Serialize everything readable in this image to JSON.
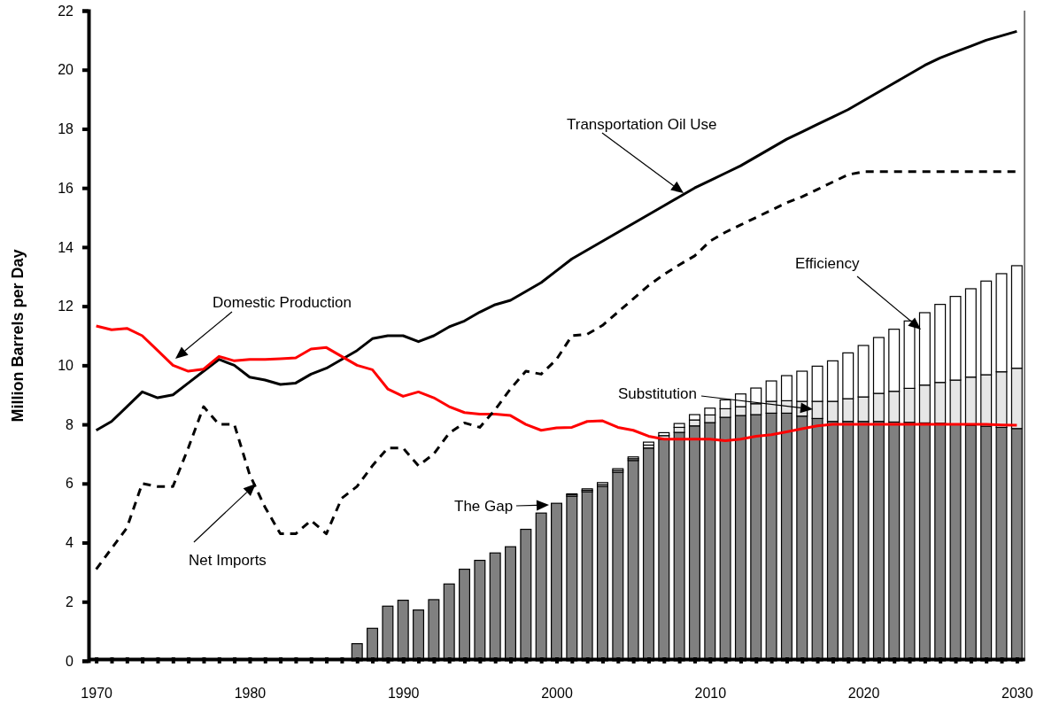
{
  "chart_data": {
    "type": "bar",
    "ylabel": "Million Barrels per Day",
    "stacked": true,
    "x": [
      1970,
      1971,
      1972,
      1973,
      1974,
      1975,
      1976,
      1977,
      1978,
      1979,
      1980,
      1981,
      1982,
      1983,
      1984,
      1985,
      1986,
      1987,
      1988,
      1989,
      1990,
      1991,
      1992,
      1993,
      1994,
      1995,
      1996,
      1997,
      1998,
      1999,
      2000,
      2001,
      2002,
      2003,
      2004,
      2005,
      2006,
      2007,
      2008,
      2009,
      2010,
      2011,
      2012,
      2013,
      2014,
      2015,
      2016,
      2017,
      2018,
      2019,
      2020,
      2021,
      2022,
      2023,
      2024,
      2025,
      2026,
      2027,
      2028,
      2029,
      2030
    ],
    "xlim": [
      1969.5,
      2030.5
    ],
    "xticks": [
      1970,
      {
        "value": 1971,
        "label": null
      },
      {
        "value": 1972,
        "label": null
      },
      {
        "value": 1973,
        "label": null
      },
      {
        "value": 1974,
        "label": null
      },
      {
        "value": 1975,
        "label": null
      },
      {
        "value": 1976,
        "label": null
      },
      {
        "value": 1977,
        "label": null
      },
      {
        "value": 1978,
        "label": null
      },
      {
        "value": 1979,
        "label": null
      },
      1980,
      {
        "value": 1981,
        "label": null
      },
      {
        "value": 1982,
        "label": null
      },
      {
        "value": 1983,
        "label": null
      },
      {
        "value": 1984,
        "label": null
      },
      {
        "value": 1985,
        "label": null
      },
      {
        "value": 1986,
        "label": null
      },
      {
        "value": 1987,
        "label": null
      },
      {
        "value": 1988,
        "label": null
      },
      {
        "value": 1989,
        "label": null
      },
      1990,
      {
        "value": 1991,
        "label": null
      },
      {
        "value": 1992,
        "label": null
      },
      {
        "value": 1993,
        "label": null
      },
      {
        "value": 1994,
        "label": null
      },
      {
        "value": 1995,
        "label": null
      },
      {
        "value": 1996,
        "label": null
      },
      {
        "value": 1997,
        "label": null
      },
      {
        "value": 1998,
        "label": null
      },
      {
        "value": 1999,
        "label": null
      },
      2000,
      {
        "value": 2001,
        "label": null
      },
      {
        "value": 2002,
        "label": null
      },
      {
        "value": 2003,
        "label": null
      },
      {
        "value": 2004,
        "label": null
      },
      {
        "value": 2005,
        "label": null
      },
      {
        "value": 2006,
        "label": null
      },
      {
        "value": 2007,
        "label": null
      },
      {
        "value": 2008,
        "label": null
      },
      {
        "value": 2009,
        "label": null
      },
      2010,
      {
        "value": 2011,
        "label": null
      },
      {
        "value": 2012,
        "label": null
      },
      {
        "value": 2013,
        "label": null
      },
      {
        "value": 2014,
        "label": null
      },
      {
        "value": 2015,
        "label": null
      },
      {
        "value": 2016,
        "label": null
      },
      {
        "value": 2017,
        "label": null
      },
      {
        "value": 2018,
        "label": null
      },
      {
        "value": 2019,
        "label": null
      },
      2020,
      {
        "value": 2021,
        "label": null
      },
      {
        "value": 2022,
        "label": null
      },
      {
        "value": 2023,
        "label": null
      },
      {
        "value": 2024,
        "label": null
      },
      {
        "value": 2025,
        "label": null
      },
      {
        "value": 2026,
        "label": null
      },
      {
        "value": 2027,
        "label": null
      },
      {
        "value": 2028,
        "label": null
      },
      {
        "value": 2029,
        "label": null
      },
      2030
    ],
    "ylim": [
      0,
      22
    ],
    "yticks": [
      0,
      2,
      4,
      6,
      8,
      10,
      12,
      14,
      16,
      18,
      20,
      22
    ],
    "series": [
      {
        "name": "The Gap",
        "color": "#808080",
        "x": [
          1987,
          1988,
          1989,
          1990,
          1991,
          1992,
          1993,
          1994,
          1995,
          1996,
          1997,
          1998,
          1999,
          2000,
          2001,
          2002,
          2003,
          2004,
          2005,
          2006,
          2007,
          2008,
          2009,
          2010,
          2011,
          2012,
          2013,
          2014,
          2015,
          2016,
          2017,
          2018,
          2019,
          2020,
          2021,
          2022,
          2023,
          2024,
          2025,
          2026,
          2027,
          2028,
          2029,
          2030
        ],
        "values": [
          0.58,
          1.1,
          1.85,
          2.05,
          1.72,
          2.07,
          2.6,
          3.1,
          3.4,
          3.65,
          3.86,
          4.45,
          5.0,
          5.33,
          5.57,
          5.72,
          5.9,
          6.38,
          6.78,
          7.2,
          7.5,
          7.73,
          7.95,
          8.06,
          8.24,
          8.3,
          8.33,
          8.38,
          8.38,
          8.28,
          8.2,
          8.1,
          8.1,
          8.1,
          8.1,
          8.08,
          8.07,
          8.05,
          8.04,
          8.0,
          7.97,
          7.94,
          7.9,
          7.86
        ]
      },
      {
        "name": "Substitution",
        "color": "#e6e6e6",
        "x": [
          1987,
          1988,
          1989,
          1990,
          1991,
          1992,
          1993,
          1994,
          1995,
          1996,
          1997,
          1998,
          1999,
          2000,
          2001,
          2002,
          2003,
          2004,
          2005,
          2006,
          2007,
          2008,
          2009,
          2010,
          2011,
          2012,
          2013,
          2014,
          2015,
          2016,
          2017,
          2018,
          2019,
          2020,
          2021,
          2022,
          2023,
          2024,
          2025,
          2026,
          2027,
          2028,
          2029,
          2030
        ],
        "values": [
          0,
          0,
          0,
          0,
          0,
          0,
          0,
          0,
          0,
          0,
          0,
          0,
          0,
          0,
          0.05,
          0.05,
          0.06,
          0.06,
          0.06,
          0.1,
          0.12,
          0.17,
          0.2,
          0.26,
          0.29,
          0.3,
          0.37,
          0.4,
          0.42,
          0.5,
          0.58,
          0.68,
          0.77,
          0.83,
          0.95,
          1.04,
          1.15,
          1.28,
          1.38,
          1.5,
          1.63,
          1.74,
          1.88,
          2.04
        ]
      },
      {
        "name": "Efficiency",
        "color": "#ffffff",
        "x": [
          1987,
          1988,
          1989,
          1990,
          1991,
          1992,
          1993,
          1994,
          1995,
          1996,
          1997,
          1998,
          1999,
          2000,
          2001,
          2002,
          2003,
          2004,
          2005,
          2006,
          2007,
          2008,
          2009,
          2010,
          2011,
          2012,
          2013,
          2014,
          2015,
          2016,
          2017,
          2018,
          2019,
          2020,
          2021,
          2022,
          2023,
          2024,
          2025,
          2026,
          2027,
          2028,
          2029,
          2030
        ],
        "values": [
          0,
          0,
          0,
          0,
          0,
          0,
          0,
          0,
          0,
          0,
          0,
          0,
          0,
          0,
          0.03,
          0.05,
          0.07,
          0.06,
          0.06,
          0.1,
          0.1,
          0.13,
          0.18,
          0.23,
          0.3,
          0.43,
          0.53,
          0.69,
          0.85,
          1.02,
          1.19,
          1.37,
          1.55,
          1.74,
          1.89,
          2.1,
          2.28,
          2.45,
          2.64,
          2.83,
          2.99,
          3.17,
          3.32,
          3.47
        ]
      },
      {
        "name": "Transportation Oil Use",
        "type": "line",
        "color": "#000000",
        "line_style": "solid",
        "values": [
          7.8,
          8.1,
          8.6,
          9.1,
          8.9,
          9.0,
          9.4,
          9.8,
          10.2,
          10.0,
          9.6,
          9.5,
          9.35,
          9.4,
          9.7,
          9.9,
          10.2,
          10.5,
          10.9,
          11.0,
          11.0,
          10.8,
          11.0,
          11.3,
          11.5,
          11.8,
          12.05,
          12.2,
          12.5,
          12.8,
          13.2,
          13.6,
          13.9,
          14.2,
          14.5,
          14.8,
          15.1,
          15.4,
          15.7,
          16.0,
          16.25,
          16.5,
          16.75,
          17.05,
          17.35,
          17.65,
          17.9,
          18.15,
          18.4,
          18.65,
          18.95,
          19.25,
          19.55,
          19.85,
          20.15,
          20.4,
          20.6,
          20.8,
          21.0,
          21.15,
          21.3
        ]
      },
      {
        "name": "Domestic Production",
        "type": "line",
        "color": "#ff0000",
        "line_style": "solid",
        "values": [
          11.33,
          11.2,
          11.25,
          11.0,
          10.5,
          10.0,
          9.8,
          9.87,
          10.3,
          10.15,
          10.2,
          10.2,
          10.22,
          10.25,
          10.55,
          10.6,
          10.3,
          10.0,
          9.85,
          9.2,
          8.95,
          9.1,
          8.9,
          8.6,
          8.4,
          8.35,
          8.35,
          8.3,
          8.0,
          7.8,
          7.88,
          7.9,
          8.1,
          8.12,
          7.9,
          7.8,
          7.6,
          7.5,
          7.5,
          7.5,
          7.5,
          7.45,
          7.5,
          7.6,
          7.65,
          7.75,
          7.85,
          7.95,
          8.0,
          8.0,
          8.0,
          8.0,
          8.0,
          8.0,
          8.0,
          8.0,
          8.0,
          8.0,
          8.0,
          7.98,
          7.97
        ]
      },
      {
        "name": "Net Imports",
        "type": "line",
        "color": "#000000",
        "line_style": "dashed",
        "values": [
          3.1,
          3.8,
          4.5,
          6.0,
          5.9,
          5.9,
          7.2,
          8.6,
          8.0,
          8.0,
          6.3,
          5.2,
          4.3,
          4.3,
          4.75,
          4.3,
          5.5,
          5.9,
          6.6,
          7.2,
          7.2,
          6.6,
          7.0,
          7.7,
          8.05,
          7.9,
          8.5,
          9.2,
          9.8,
          9.7,
          10.2,
          11.0,
          11.05,
          11.35,
          11.8,
          12.25,
          12.7,
          13.07,
          13.4,
          13.7,
          14.2,
          14.5,
          14.75,
          15.0,
          15.25,
          15.5,
          15.7,
          15.95,
          16.2,
          16.45,
          16.55,
          16.55,
          16.55,
          16.55,
          16.55,
          16.55,
          16.55,
          16.55,
          16.55,
          16.55,
          16.55
        ]
      }
    ]
  }
}
